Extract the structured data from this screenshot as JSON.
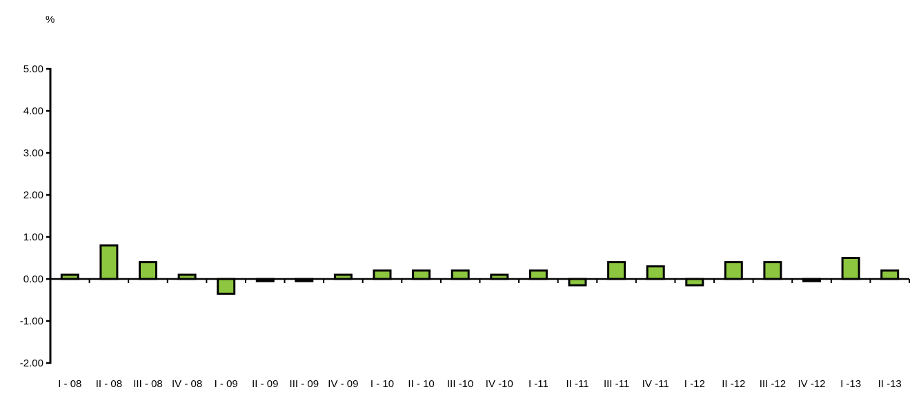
{
  "chart_data": {
    "type": "bar",
    "unit_label": "%",
    "categories": [
      "I - 08",
      "II - 08",
      "III - 08",
      "IV - 08",
      "I - 09",
      "II - 09",
      "III - 09",
      "IV - 09",
      "I - 10",
      "II - 10",
      "III -10",
      "IV -10",
      "I -11",
      "II -11",
      "III -11",
      "IV -11",
      "I -12",
      "II -12",
      "III -12",
      "IV -12",
      "I -13",
      "II -13"
    ],
    "values": [
      0.1,
      0.8,
      0.4,
      0.1,
      -0.35,
      -0.05,
      -0.05,
      0.1,
      0.2,
      0.2,
      0.2,
      0.1,
      0.2,
      -0.15,
      0.4,
      0.3,
      -0.15,
      0.4,
      0.4,
      -0.05,
      0.5,
      0.2
    ],
    "y_ticks": [
      "5.00",
      "4.00",
      "3.00",
      "2.00",
      "1.00",
      "0.00",
      "-1.00",
      "-2.00"
    ],
    "ylim": [
      -2,
      5
    ],
    "bar_color": "#8dc63f",
    "outline_color": "#000000",
    "grid": false,
    "legend": "none"
  }
}
